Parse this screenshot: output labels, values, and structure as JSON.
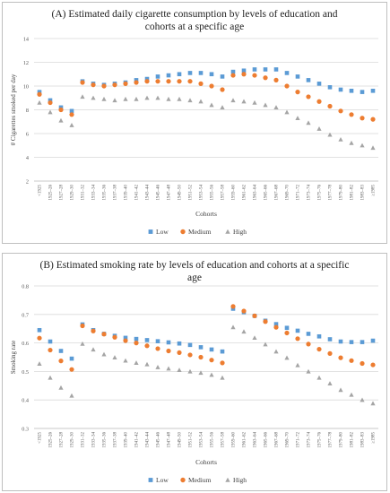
{
  "chart_data": [
    {
      "type": "scatter",
      "title": "(A) Estimated daily cigarette consumption by levels of education and cohorts at a specific age",
      "xlabel": "Cohorts",
      "ylabel": "# Cigarettes smoked per day",
      "ylim": [
        2,
        14
      ],
      "yticks": [
        "2",
        "4",
        "6",
        "8",
        "10",
        "12",
        "14"
      ],
      "grid": true,
      "legend_position": "bottom",
      "categories": [
        "<1925",
        "1925–26",
        "1927–28",
        "1929–30",
        "1931–32",
        "1933–34",
        "1935–36",
        "1937–38",
        "1939–40",
        "1941–42",
        "1943–44",
        "1945–46",
        "1947–48",
        "1949–50",
        "1951–52",
        "1953–54",
        "1955–56",
        "1957–58",
        "1959–60",
        "1961–62",
        "1963–64",
        "1965–66",
        "1967–68",
        "1969–70",
        "1971–72",
        "1973–74",
        "1975–76",
        "1977–78",
        "1979–80",
        "1981–82",
        "1983–83",
        "≥1985"
      ],
      "series": [
        {
          "name": "Low",
          "marker": "square",
          "color": "#5b9bd5",
          "values": [
            9.5,
            8.8,
            8.2,
            7.9,
            10.4,
            10.2,
            10.1,
            10.2,
            10.3,
            10.5,
            10.6,
            10.8,
            10.9,
            11.0,
            11.1,
            11.1,
            11.0,
            10.8,
            11.2,
            11.3,
            11.4,
            11.4,
            11.4,
            11.1,
            10.8,
            10.5,
            10.2,
            9.9,
            9.7,
            9.6,
            9.5,
            9.6
          ]
        },
        {
          "name": "Medium",
          "marker": "circle",
          "color": "#ed7d31",
          "values": [
            9.3,
            8.6,
            8.0,
            7.6,
            10.3,
            10.1,
            10.0,
            10.1,
            10.2,
            10.3,
            10.4,
            10.4,
            10.4,
            10.4,
            10.4,
            10.2,
            10.0,
            9.7,
            10.9,
            11.0,
            10.9,
            10.7,
            10.5,
            10.0,
            9.5,
            9.1,
            8.7,
            8.3,
            7.9,
            7.6,
            7.3,
            7.2
          ]
        },
        {
          "name": "High",
          "marker": "triangle",
          "color": "#a5a5a5",
          "values": [
            8.6,
            7.8,
            7.1,
            6.7,
            9.1,
            9.0,
            8.9,
            8.8,
            8.9,
            8.9,
            9.0,
            9.0,
            8.9,
            8.9,
            8.8,
            8.7,
            8.4,
            8.2,
            8.8,
            8.7,
            8.6,
            8.4,
            8.2,
            7.8,
            7.3,
            6.9,
            6.4,
            5.9,
            5.5,
            5.2,
            5.0,
            4.8
          ]
        }
      ]
    },
    {
      "type": "scatter",
      "title": "(B) Estimated smoking rate by levels of education and cohorts at a specific age",
      "xlabel": "Cohorts",
      "ylabel": "Smoking rate",
      "ylim": [
        0.3,
        0.8
      ],
      "yticks": [
        "0.3",
        "0.4",
        "0.5",
        "0.6",
        "0.7",
        "0.8"
      ],
      "grid": true,
      "legend_position": "bottom",
      "categories": [
        "<1925",
        "1925–26",
        "1927–28",
        "1929–30",
        "1931–32",
        "1933–34",
        "1935–36",
        "1937–38",
        "1939–40",
        "1941–42",
        "1943–44",
        "1945–46",
        "1947–48",
        "1949–50",
        "1951–52",
        "1953–54",
        "1955–56",
        "1957–58",
        "1959–60",
        "1961–62",
        "1963–64",
        "1965–66",
        "1967–68",
        "1969–70",
        "1971–72",
        "1973–74",
        "1975–76",
        "1977–78",
        "1979–80",
        "1981–82",
        "1983–83",
        "≥1985"
      ],
      "series": [
        {
          "name": "Low",
          "marker": "square",
          "color": "#5b9bd5",
          "values": [
            0.645,
            0.605,
            0.572,
            0.545,
            0.665,
            0.645,
            0.632,
            0.625,
            0.618,
            0.614,
            0.61,
            0.606,
            0.602,
            0.598,
            0.593,
            0.585,
            0.577,
            0.57,
            0.72,
            0.708,
            0.695,
            0.678,
            0.666,
            0.653,
            0.643,
            0.632,
            0.623,
            0.613,
            0.605,
            0.603,
            0.603,
            0.608
          ]
        },
        {
          "name": "Medium",
          "marker": "circle",
          "color": "#ed7d31",
          "values": [
            0.617,
            0.575,
            0.537,
            0.507,
            0.66,
            0.642,
            0.631,
            0.62,
            0.608,
            0.6,
            0.59,
            0.58,
            0.572,
            0.566,
            0.558,
            0.55,
            0.54,
            0.53,
            0.728,
            0.712,
            0.695,
            0.675,
            0.655,
            0.635,
            0.615,
            0.596,
            0.578,
            0.563,
            0.548,
            0.538,
            0.528,
            0.523
          ]
        },
        {
          "name": "High",
          "marker": "triangle",
          "color": "#a5a5a5",
          "values": [
            0.527,
            0.478,
            0.443,
            0.415,
            0.597,
            0.577,
            0.56,
            0.549,
            0.538,
            0.53,
            0.525,
            0.515,
            0.51,
            0.505,
            0.5,
            0.495,
            0.488,
            0.478,
            0.655,
            0.64,
            0.618,
            0.595,
            0.57,
            0.548,
            0.522,
            0.5,
            0.478,
            0.458,
            0.435,
            0.418,
            0.4,
            0.388
          ]
        }
      ]
    }
  ]
}
